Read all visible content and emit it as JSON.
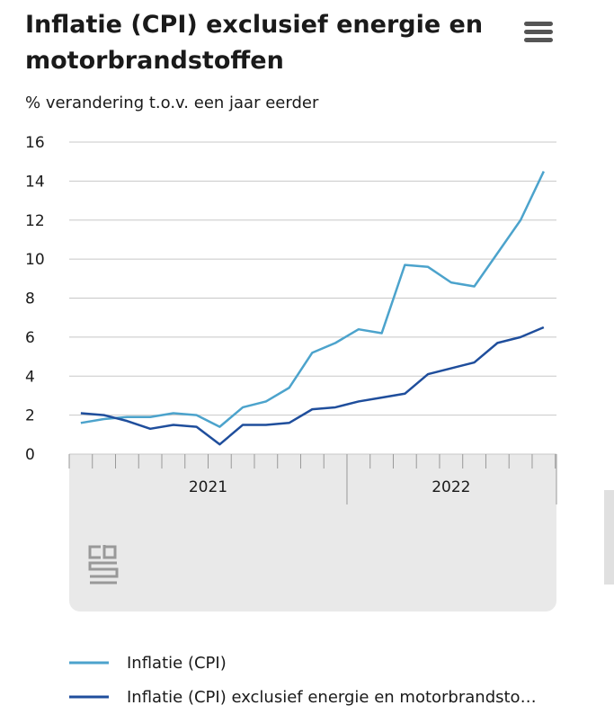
{
  "chart_data": {
    "type": "line",
    "title": [
      "Inflatie (CPI) exclusief energie en",
      "motorbrandstoffen"
    ],
    "subtitle": "% verandering t.o.v. een jaar eerder",
    "categories": [
      null,
      null,
      null,
      null,
      null,
      null,
      null,
      null,
      null,
      null,
      null,
      null,
      null,
      null,
      null,
      null,
      null,
      null,
      null,
      null,
      null
    ],
    "x_groups": [
      {
        "label": "2021",
        "start": 0,
        "end": 11
      },
      {
        "label": "2022",
        "start": 12,
        "end": 20
      }
    ],
    "series": [
      {
        "name": "Inflatie (CPI)",
        "color": "#4ca3cc",
        "values": [
          1.6,
          1.8,
          1.9,
          1.9,
          2.1,
          2.0,
          1.4,
          2.4,
          2.7,
          3.4,
          5.2,
          5.7,
          6.4,
          6.2,
          9.7,
          9.6,
          8.8,
          8.6,
          10.3,
          12.0,
          14.5
        ]
      },
      {
        "name": "Inflatie (CPI) exclusief energie en motorbrandsto…",
        "color": "#1f4e9c",
        "values": [
          2.1,
          2.0,
          1.7,
          1.3,
          1.5,
          1.4,
          0.5,
          1.5,
          1.5,
          1.6,
          2.3,
          2.4,
          2.7,
          2.9,
          3.1,
          4.1,
          4.4,
          4.7,
          5.7,
          6.0,
          6.5
        ]
      }
    ],
    "ylim": [
      0,
      16
    ],
    "yticks": [
      0,
      2,
      4,
      6,
      8,
      10,
      12,
      14,
      16
    ],
    "grid": true
  }
}
